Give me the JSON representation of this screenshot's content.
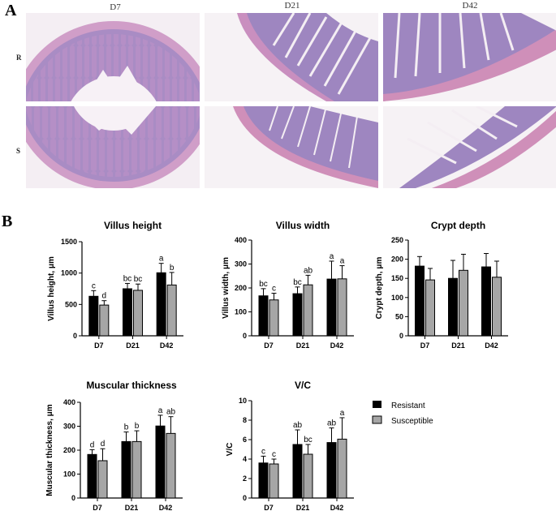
{
  "panel_a": {
    "letter": "A",
    "columns": [
      "D7",
      "D21",
      "D42"
    ],
    "rows": [
      "R",
      "S"
    ]
  },
  "panel_b": {
    "letter": "B",
    "legend": [
      "Resistant",
      "Susceptible"
    ],
    "colors": {
      "resistant": "#000000",
      "susceptible": "#a6a6a6"
    }
  },
  "chart_data": [
    {
      "type": "bar",
      "title": "Villus height",
      "ylabel": "Villus height, μm",
      "categories": [
        "D7",
        "D21",
        "D42"
      ],
      "ylim": [
        0,
        1500
      ],
      "yticks": [
        0,
        500,
        1000,
        1500
      ],
      "series": [
        {
          "name": "Resistant",
          "values": [
            630,
            750,
            1005
          ],
          "errors": [
            90,
            85,
            150
          ],
          "letters": [
            "c",
            "bc",
            "a"
          ]
        },
        {
          "name": "Susceptible",
          "values": [
            490,
            725,
            810
          ],
          "errors": [
            70,
            100,
            200
          ],
          "letters": [
            "d",
            "bc",
            "b"
          ]
        }
      ]
    },
    {
      "type": "bar",
      "title": "Villus width",
      "ylabel": "Villus width, μm",
      "categories": [
        "D7",
        "D21",
        "D42"
      ],
      "ylim": [
        0,
        400
      ],
      "yticks": [
        0,
        100,
        200,
        300,
        400
      ],
      "series": [
        {
          "name": "Resistant",
          "values": [
            167,
            176,
            237
          ],
          "errors": [
            30,
            28,
            75
          ],
          "letters": [
            "bc",
            "bc",
            "a"
          ]
        },
        {
          "name": "Susceptible",
          "values": [
            150,
            213,
            238
          ],
          "errors": [
            28,
            40,
            55
          ],
          "letters": [
            "c",
            "ab",
            "a"
          ]
        }
      ]
    },
    {
      "type": "bar",
      "title": "Crypt depth",
      "ylabel": "Crypt depth, μm",
      "categories": [
        "D7",
        "D21",
        "D42"
      ],
      "ylim": [
        0,
        250
      ],
      "yticks": [
        0,
        50,
        100,
        150,
        200,
        250
      ],
      "series": [
        {
          "name": "Resistant",
          "values": [
            182,
            150,
            180
          ],
          "errors": [
            25,
            47,
            35
          ],
          "letters": [
            "",
            "",
            ""
          ]
        },
        {
          "name": "Susceptible",
          "values": [
            146,
            171,
            153
          ],
          "errors": [
            30,
            42,
            42
          ],
          "letters": [
            "",
            "",
            ""
          ]
        }
      ]
    },
    {
      "type": "bar",
      "title": "Muscular thickness",
      "ylabel": "Muscular thickness, μm",
      "categories": [
        "D7",
        "D21",
        "D42"
      ],
      "ylim": [
        0,
        400
      ],
      "yticks": [
        0,
        100,
        200,
        300,
        400
      ],
      "series": [
        {
          "name": "Resistant",
          "values": [
            182,
            236,
            301
          ],
          "errors": [
            20,
            40,
            45
          ],
          "letters": [
            "d",
            "b",
            "a"
          ]
        },
        {
          "name": "Susceptible",
          "values": [
            156,
            236,
            270
          ],
          "errors": [
            50,
            45,
            70
          ],
          "letters": [
            "d",
            "b",
            "ab"
          ]
        }
      ]
    },
    {
      "type": "bar",
      "title": "V/C",
      "ylabel": "V/C",
      "categories": [
        "D7",
        "D21",
        "D42"
      ],
      "ylim": [
        0,
        10
      ],
      "yticks": [
        0,
        2,
        4,
        6,
        8,
        10
      ],
      "series": [
        {
          "name": "Resistant",
          "values": [
            3.6,
            5.5,
            5.7
          ],
          "errors": [
            0.7,
            1.5,
            1.5
          ],
          "letters": [
            "c",
            "ab",
            "ab"
          ]
        },
        {
          "name": "Susceptible",
          "values": [
            3.5,
            4.5,
            6.05
          ],
          "errors": [
            0.5,
            1.0,
            2.2
          ],
          "letters": [
            "c",
            "bc",
            "a"
          ]
        }
      ]
    }
  ]
}
